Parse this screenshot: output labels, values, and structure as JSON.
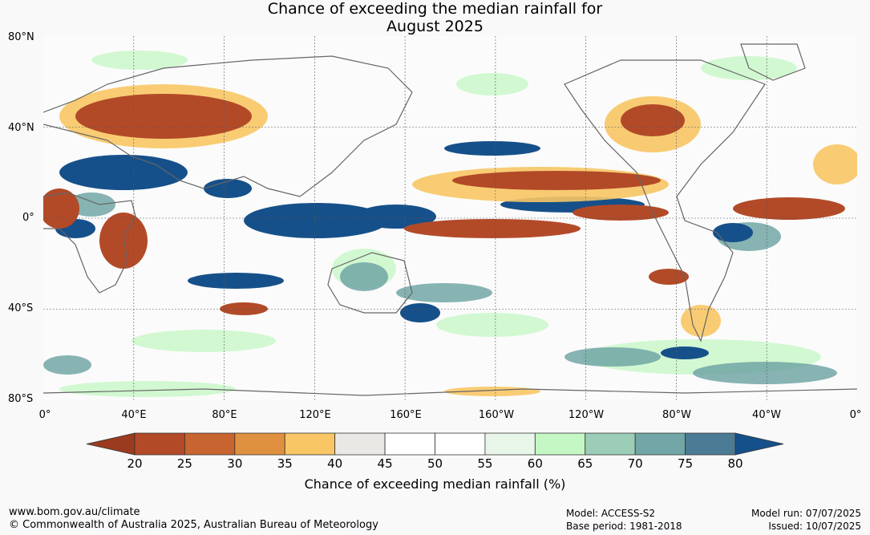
{
  "title": {
    "line1": "Chance of exceeding the median rainfall for",
    "line2": "August 2025"
  },
  "lat_labels": [
    "80°N",
    "40°N",
    "0°",
    "40°S",
    "80°S"
  ],
  "lon_labels": [
    "0°",
    "40°E",
    "80°E",
    "120°E",
    "160°E",
    "160°W",
    "120°W",
    "80°W",
    "40°W",
    "0°"
  ],
  "colorbar": {
    "ticks": [
      "20",
      "25",
      "30",
      "35",
      "40",
      "45",
      "50",
      "55",
      "60",
      "65",
      "70",
      "75",
      "80"
    ],
    "colors": [
      "#9a3a1f",
      "#b24a28",
      "#c8642f",
      "#e0913f",
      "#f8c665",
      "#e9e8e5",
      "#ffffff",
      "#ffffff",
      "#e8f5e9",
      "#c4f7c4",
      "#9ccdb6",
      "#72a6a6",
      "#4c7b95",
      "#16508a"
    ],
    "caption": "Chance of exceeding median rainfall (%)"
  },
  "footer": {
    "url": "www.bom.gov.au/climate",
    "copyright": "© Commonwealth of Australia 2025, Australian Bureau of Meteorology",
    "model": "Model: ACCESS-S2",
    "base_period": "Base period: 1981-2018",
    "model_run": "Model run: 07/07/2025",
    "issued": "Issued: 10/07/2025"
  }
}
